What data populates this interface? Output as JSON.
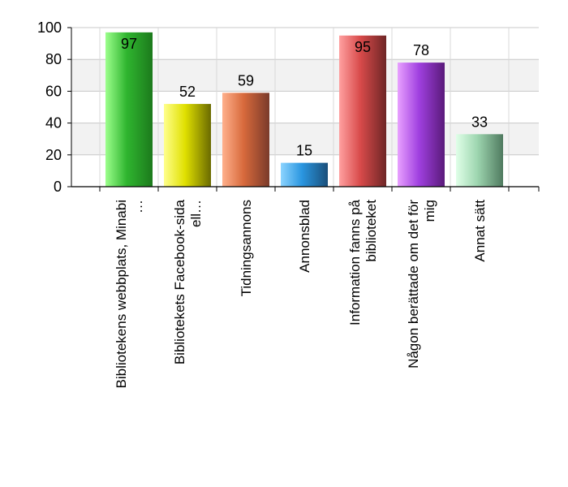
{
  "chart_data": {
    "type": "bar",
    "title": "",
    "xlabel": "",
    "ylabel": "",
    "ylim": [
      0,
      100
    ],
    "yticks": [
      0,
      20,
      40,
      60,
      80,
      100
    ],
    "grid": true,
    "legend": "none",
    "categories": [
      [
        "Bibliotekens webbplats, Minabi",
        "…"
      ],
      [
        "Bibliotekets Facebook-sida",
        "ell…"
      ],
      [
        "Tidningsannons"
      ],
      [
        "Annonsblad"
      ],
      [
        "Information fanns på",
        "biblioteket"
      ],
      [
        "Någon berättade om det för",
        "mig"
      ],
      [
        "Annat sätt"
      ]
    ],
    "values": [
      97,
      52,
      59,
      15,
      95,
      78,
      33
    ],
    "bar_colors": [
      [
        "#9cff8c",
        "#2fb52f",
        "#1c7a1c"
      ],
      [
        "#ffff8c",
        "#e0e000",
        "#6a6a00"
      ],
      [
        "#ffb08c",
        "#d86a3c",
        "#7a3a2a"
      ],
      [
        "#8cd4ff",
        "#2a96e0",
        "#1a4f7a"
      ],
      [
        "#ffa0a0",
        "#d84a4a",
        "#6e2626"
      ],
      [
        "#e8a0ff",
        "#a040e0",
        "#5a1a7a"
      ],
      [
        "#e0ffe8",
        "#9ed6b0",
        "#4f7a5f"
      ]
    ]
  }
}
